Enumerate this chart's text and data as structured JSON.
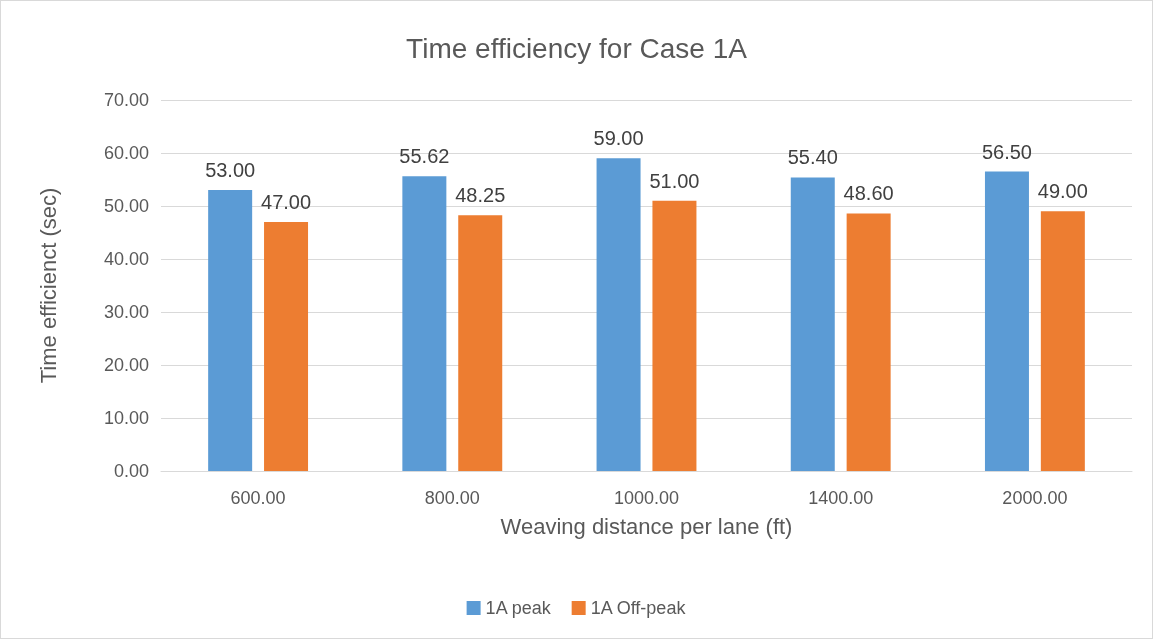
{
  "chart_data": {
    "type": "bar",
    "title": "Time efficiency for Case 1A",
    "xlabel": "Weaving distance per lane (ft)",
    "ylabel": "Time efficienct (sec)",
    "categories": [
      "600.00",
      "800.00",
      "1000.00",
      "1400.00",
      "2000.00"
    ],
    "series": [
      {
        "name": "1A peak",
        "color": "#5b9bd5",
        "values": [
          53,
          55.62,
          59,
          55.4,
          56.5
        ],
        "value_labels": [
          "53.00",
          "55.62",
          "59.00",
          "55.40",
          "56.50"
        ]
      },
      {
        "name": "1A Off-peak",
        "color": "#ed7d31",
        "values": [
          47,
          48.25,
          51,
          48.6,
          49
        ],
        "value_labels": [
          "47.00",
          "48.25",
          "51.00",
          "48.60",
          "49.00"
        ]
      }
    ],
    "ylim": [
      0,
      70
    ],
    "yticks": [
      {
        "value": 0,
        "label": "0.00"
      },
      {
        "value": 10,
        "label": "10.00"
      },
      {
        "value": 20,
        "label": "20.00"
      },
      {
        "value": 30,
        "label": "30.00"
      },
      {
        "value": 40,
        "label": "40.00"
      },
      {
        "value": 50,
        "label": "50.00"
      },
      {
        "value": 60,
        "label": "60.00"
      },
      {
        "value": 70,
        "label": "70.00"
      }
    ],
    "grid": "y",
    "legend": "bottom"
  }
}
